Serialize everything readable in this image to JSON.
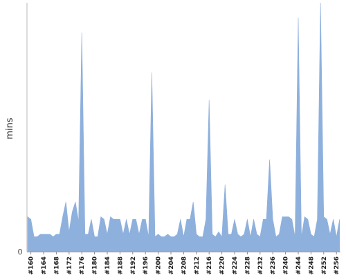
{
  "chart_data": {
    "type": "area",
    "ylabel": "mins",
    "xlabel": "",
    "title": "",
    "ylim": [
      0,
      100
    ],
    "y_tick_labels": [
      "0"
    ],
    "grid": false,
    "series": [
      {
        "color": "#8eb0dd",
        "x": [
          "#159",
          "#160",
          "#161",
          "#162",
          "#163",
          "#164",
          "#165",
          "#166",
          "#167",
          "#168",
          "#169",
          "#170",
          "#171",
          "#172",
          "#173",
          "#174",
          "#175",
          "#176",
          "#177",
          "#178",
          "#179",
          "#180",
          "#181",
          "#182",
          "#183",
          "#184",
          "#185",
          "#186",
          "#187",
          "#188",
          "#189",
          "#190",
          "#191",
          "#192",
          "#193",
          "#194",
          "#195",
          "#196",
          "#197",
          "#198",
          "#199",
          "#200",
          "#201",
          "#202",
          "#203",
          "#204",
          "#205",
          "#206",
          "#207",
          "#208",
          "#209",
          "#210",
          "#211",
          "#212",
          "#213",
          "#214",
          "#215",
          "#216",
          "#217",
          "#218",
          "#219",
          "#220",
          "#221",
          "#222",
          "#223",
          "#224",
          "#225",
          "#226",
          "#227",
          "#228",
          "#229",
          "#230",
          "#231",
          "#232",
          "#233",
          "#234",
          "#235",
          "#236",
          "#237",
          "#238",
          "#239",
          "#240",
          "#241",
          "#242",
          "#243",
          "#244",
          "#245",
          "#246",
          "#247",
          "#248",
          "#249",
          "#250",
          "#251",
          "#252",
          "#253",
          "#254",
          "#255",
          "#256",
          "#257"
        ],
        "values": [
          14,
          13,
          6,
          6,
          7,
          7,
          7,
          7,
          6,
          7,
          7,
          14,
          20,
          8,
          16,
          20,
          12,
          88,
          7,
          7,
          13,
          6,
          6,
          14,
          13,
          7,
          14,
          13,
          13,
          13,
          7,
          13,
          7,
          13,
          13,
          7,
          13,
          13,
          6,
          72,
          6,
          7,
          6,
          6,
          7,
          6,
          6,
          7,
          13,
          6,
          13,
          13,
          20,
          7,
          6,
          6,
          13,
          61,
          7,
          6,
          8,
          6,
          27,
          7,
          7,
          13,
          7,
          6,
          7,
          13,
          6,
          13,
          7,
          6,
          13,
          13,
          37,
          13,
          6,
          7,
          14,
          14,
          14,
          13,
          6,
          94,
          6,
          14,
          13,
          7,
          6,
          13,
          100,
          14,
          13,
          7,
          13,
          6,
          13
        ]
      }
    ],
    "x_tick_labels": [
      "#160",
      "#164",
      "#168",
      "#172",
      "#176",
      "#180",
      "#184",
      "#188",
      "#192",
      "#196",
      "#200",
      "#204",
      "#208",
      "#212",
      "#216",
      "#220",
      "#224",
      "#228",
      "#232",
      "#236",
      "#240",
      "#244",
      "#248",
      "#252",
      "#256"
    ]
  }
}
